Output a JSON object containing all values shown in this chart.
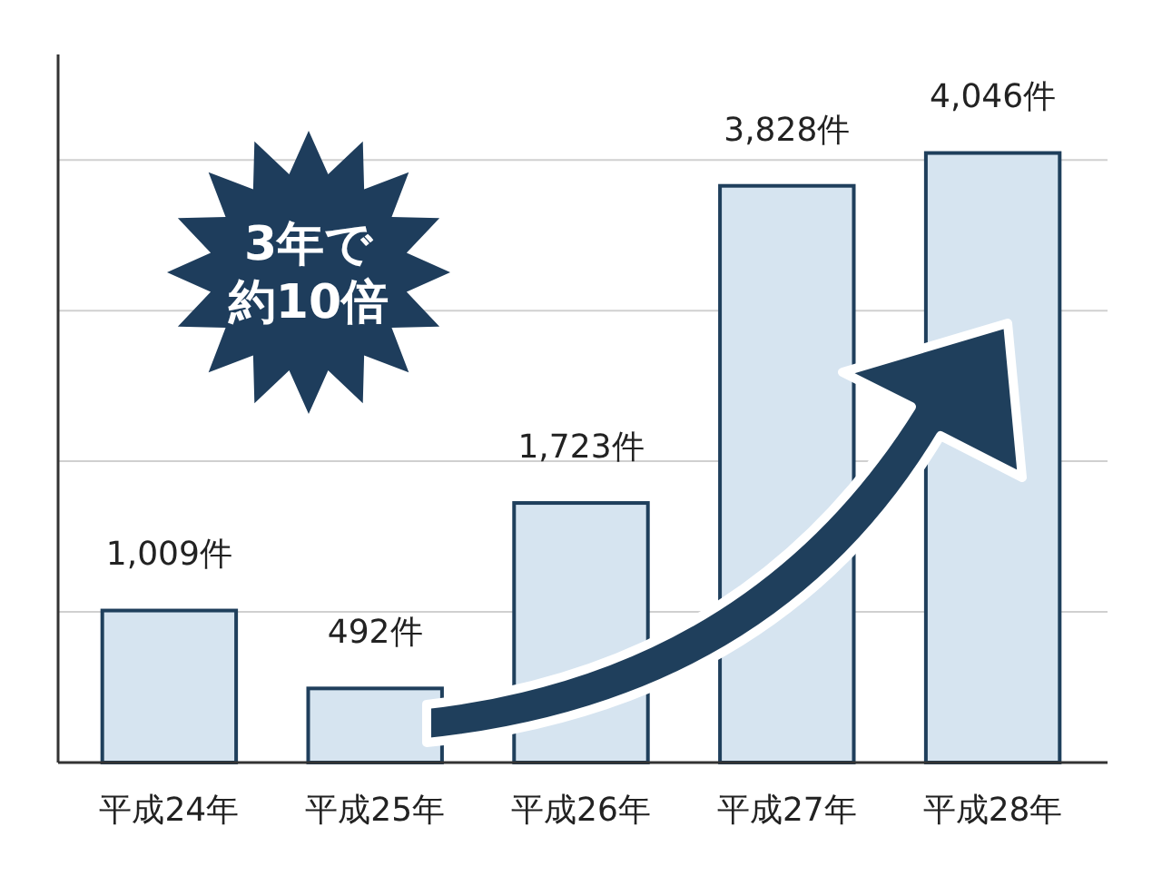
{
  "chart_data": {
    "type": "bar",
    "categories": [
      "平成24年",
      "平成25年",
      "平成26年",
      "平成27年",
      "平成28年"
    ],
    "values": [
      1009,
      492,
      1723,
      3828,
      4046
    ],
    "value_labels": [
      "1,009件",
      "492件",
      "1,723件",
      "3,828件",
      "4,046件"
    ],
    "color": "#d6e4f0",
    "ylim": [
      0,
      4700
    ],
    "yticks": [
      {
        "value": 1000,
        "label": null
      },
      {
        "value": 2000,
        "label": null
      },
      {
        "value": 3000,
        "label": null
      },
      {
        "value": 4000,
        "label": null
      }
    ],
    "grid": "y",
    "tick_labels": "x",
    "annotations": [
      "3年で",
      "約10倍"
    ]
  }
}
